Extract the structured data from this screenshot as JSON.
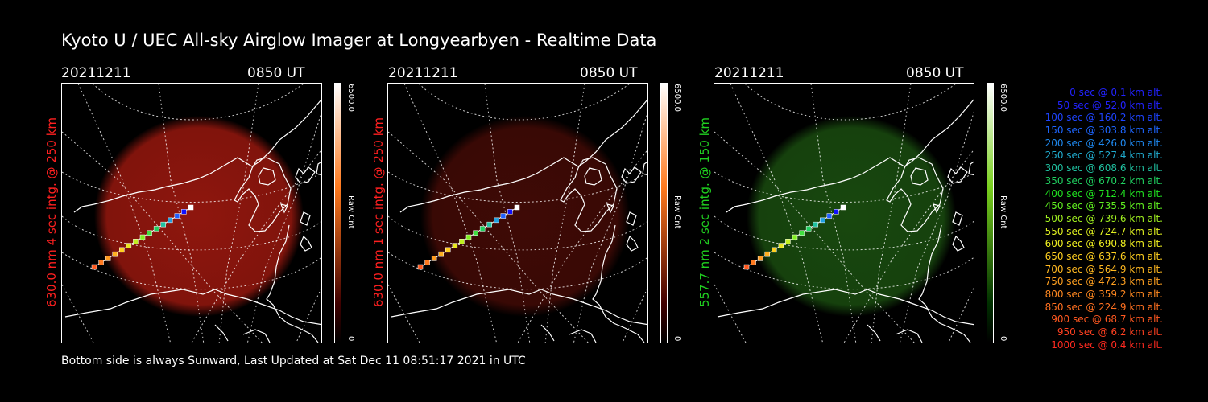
{
  "title": "Kyoto U / UEC All-sky Airglow Imager at Longyearbyen - Realtime Data",
  "panels": [
    {
      "date": "20211211",
      "time": "0850 UT",
      "ylabel": "630.0 nm 4 sec intg. @ 250 km",
      "label_color": "#ff2020",
      "glow_color": "#a81a10",
      "glow_opacity": 0.85,
      "cbar_max": "6500.0",
      "cbar_min": "0",
      "cbar_label": "Raw Cnt",
      "cbar_top": "#ffffff",
      "cbar_mid": "#ff7a1e",
      "cbar_bottom": "#400000"
    },
    {
      "date": "20211211",
      "time": "0850 UT",
      "ylabel": "630.0 nm 1 sec intg. @ 250 km",
      "label_color": "#ff2020",
      "glow_color": "#5a0e08",
      "glow_opacity": 0.7,
      "cbar_max": "6500.0",
      "cbar_min": "0",
      "cbar_label": "Raw Cnt",
      "cbar_top": "#ffffff",
      "cbar_mid": "#ff7a1e",
      "cbar_bottom": "#400000"
    },
    {
      "date": "20211211",
      "time": "0850 UT",
      "ylabel": "557.7 nm 2 sec intg. @ 150 km",
      "label_color": "#20d020",
      "glow_color": "#1e5a12",
      "glow_opacity": 0.8,
      "cbar_max": "6500.0",
      "cbar_min": "0",
      "cbar_label": "Raw Cnt",
      "cbar_top": "#ffffff",
      "cbar_mid": "#7ad01e",
      "cbar_bottom": "#003000"
    }
  ],
  "trajectory_colors": [
    "#ff5a20",
    "#ff7a20",
    "#ff9a20",
    "#ffb020",
    "#ffd020",
    "#e8e820",
    "#c0f020",
    "#80f020",
    "#40e040",
    "#20d060",
    "#20c0a0",
    "#20a0e0",
    "#2060ff",
    "#1010ff",
    "#ffffff"
  ],
  "legend": [
    {
      "text": "0 sec @    0.1 km alt.",
      "color": "#2222ff"
    },
    {
      "text": "50 sec @   52.0 km alt.",
      "color": "#2222ff"
    },
    {
      "text": "100 sec @ 160.2 km alt.",
      "color": "#1e44ff"
    },
    {
      "text": "150 sec @ 303.8 km alt.",
      "color": "#1e66ff"
    },
    {
      "text": "200 sec @ 426.0 km alt.",
      "color": "#1e88ee"
    },
    {
      "text": "250 sec @ 527.4 km alt.",
      "color": "#20aacc"
    },
    {
      "text": "300 sec @ 608.6 km alt.",
      "color": "#20c0a0"
    },
    {
      "text": "350 sec @ 670.2 km alt.",
      "color": "#20d060"
    },
    {
      "text": "400 sec @ 712.4 km alt.",
      "color": "#20e020"
    },
    {
      "text": "450 sec @ 735.5 km alt.",
      "color": "#60f020"
    },
    {
      "text": "500 sec @ 739.6 km alt.",
      "color": "#a0f020"
    },
    {
      "text": "550 sec @ 724.7 km alt.",
      "color": "#e0f020"
    },
    {
      "text": "600 sec @ 690.8 km alt.",
      "color": "#f0f020"
    },
    {
      "text": "650 sec @ 637.6 km alt.",
      "color": "#ffd020"
    },
    {
      "text": "700 sec @ 564.9 km alt.",
      "color": "#ffb820"
    },
    {
      "text": "750 sec @ 472.3 km alt.",
      "color": "#ffa020"
    },
    {
      "text": "800 sec @ 359.2 km alt.",
      "color": "#ff8820"
    },
    {
      "text": "850 sec @ 224.9 km alt.",
      "color": "#ff7020"
    },
    {
      "text": "900 sec @   68.7 km alt.",
      "color": "#ff5820"
    },
    {
      "text": "950 sec @    6.2 km alt.",
      "color": "#ff4020"
    },
    {
      "text": "1000 sec @    0.4 km alt.",
      "color": "#ff2a20"
    }
  ],
  "footer": "Bottom side is always Sunward, Last Updated at Sat Dec 11 08:51:17 2021 in UTC"
}
